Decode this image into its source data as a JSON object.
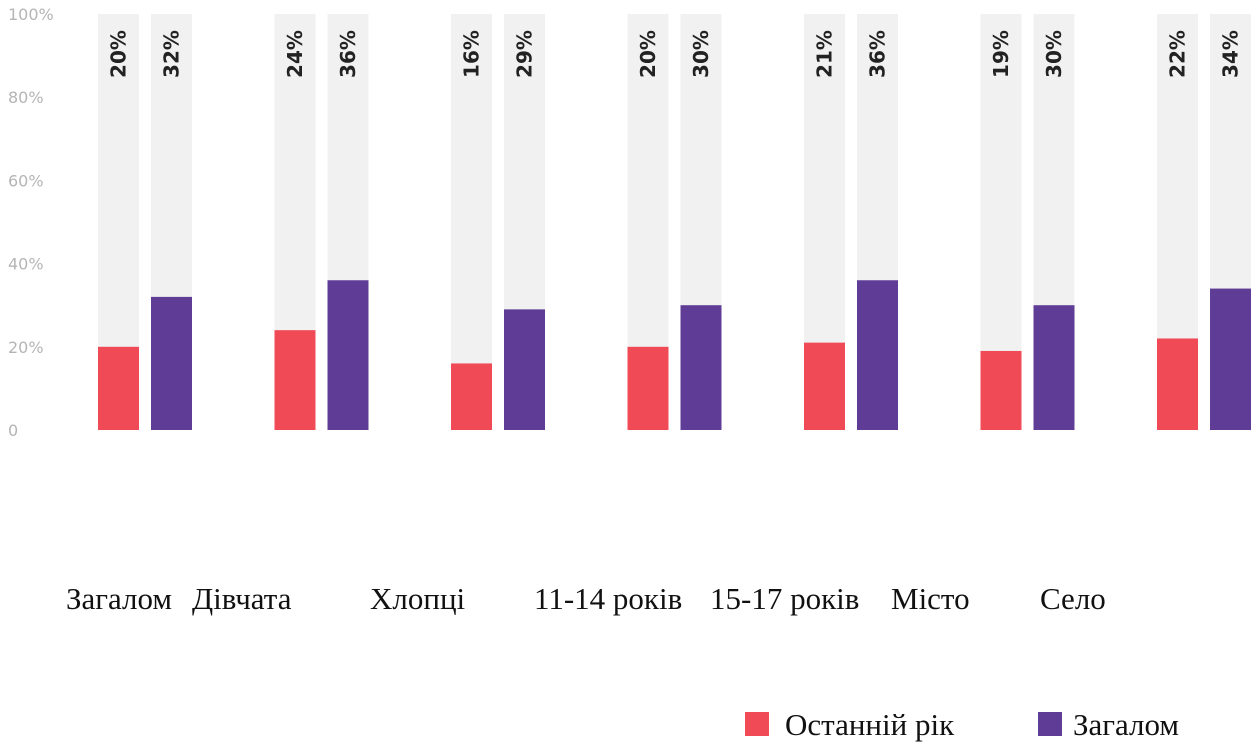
{
  "chart_data": {
    "type": "bar",
    "categories": [
      "Загалом",
      "Дівчата",
      "Хлопці",
      "11-14 років",
      "15-17 років",
      "Місто",
      "Село"
    ],
    "series": [
      {
        "name": "Останній рік",
        "color": "#f04a56",
        "values": [
          20,
          24,
          16,
          20,
          21,
          19,
          22
        ]
      },
      {
        "name": "Загалом",
        "color": "#5f3d96",
        "values": [
          32,
          36,
          29,
          30,
          36,
          30,
          34
        ]
      }
    ],
    "ylim": [
      0,
      100
    ],
    "yticks": [
      0,
      20,
      40,
      60,
      80,
      100
    ],
    "ytick_labels": [
      "0",
      "20%",
      "40%",
      "60%",
      "80%",
      "100%"
    ],
    "value_suffix": "%",
    "background_bar_color": "#f1f1f1",
    "grid": false,
    "legend_position": "bottom-right"
  }
}
